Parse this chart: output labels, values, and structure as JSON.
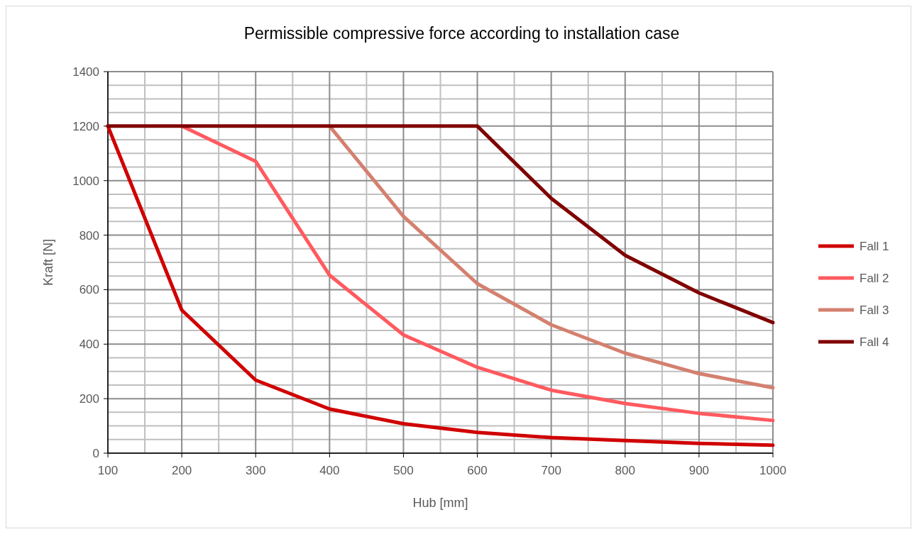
{
  "chart_data": {
    "type": "line",
    "title": "Permissible compressive force according to installation case",
    "xlabel": "Hub [mm]",
    "ylabel": "Kraft [N]",
    "xlim": [
      100,
      1000
    ],
    "xticks": [
      100,
      200,
      300,
      400,
      500,
      600,
      700,
      800,
      900,
      1000
    ],
    "ylim": [
      0,
      1400
    ],
    "yticks": [
      0,
      200,
      400,
      600,
      800,
      1000,
      1200,
      1400
    ],
    "grid": true,
    "legend": "right",
    "marker": "none",
    "line_style": "solid",
    "series": [
      {
        "name": "Fall 1",
        "color": "#d00000",
        "x": [
          100,
          200,
          300,
          400,
          500,
          600,
          700,
          800,
          900,
          1000
        ],
        "values": [
          1200,
          525,
          268,
          162,
          108,
          76,
          57,
          46,
          36,
          29
        ]
      },
      {
        "name": "Fall 2",
        "color": "#ff5a5f",
        "x": [
          200,
          300,
          400,
          500,
          600,
          700,
          800,
          900,
          1000
        ],
        "values": [
          1200,
          1071,
          653,
          434,
          315,
          231,
          182,
          146,
          120
        ]
      },
      {
        "name": "Fall 3",
        "color": "#d4806f",
        "x": [
          400,
          500,
          600,
          700,
          800,
          900,
          1000
        ],
        "values": [
          1200,
          869,
          622,
          471,
          367,
          292,
          240
        ]
      },
      {
        "name": "Fall 4",
        "color": "#800000",
        "x": [
          100,
          200,
          300,
          400,
          500,
          600,
          700,
          800,
          900,
          1000
        ],
        "values": [
          1200,
          1200,
          1200,
          1200,
          1200,
          1200,
          935,
          726,
          588,
          479
        ]
      }
    ]
  }
}
